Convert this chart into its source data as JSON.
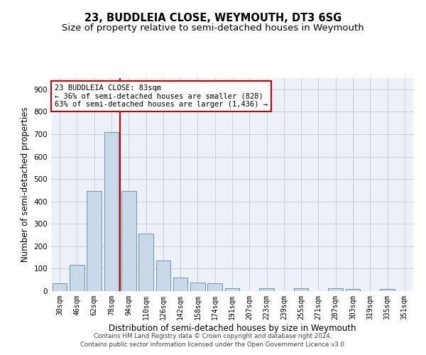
{
  "title": "23, BUDDLEIA CLOSE, WEYMOUTH, DT3 6SG",
  "subtitle": "Size of property relative to semi-detached houses in Weymouth",
  "xlabel": "Distribution of semi-detached houses by size in Weymouth",
  "ylabel": "Number of semi-detached properties",
  "bin_labels": [
    "30sqm",
    "46sqm",
    "62sqm",
    "78sqm",
    "94sqm",
    "110sqm",
    "126sqm",
    "142sqm",
    "158sqm",
    "174sqm",
    "191sqm",
    "207sqm",
    "223sqm",
    "239sqm",
    "255sqm",
    "271sqm",
    "287sqm",
    "303sqm",
    "319sqm",
    "335sqm",
    "351sqm"
  ],
  "bin_values": [
    35,
    118,
    447,
    710,
    447,
    256,
    135,
    60,
    38,
    35,
    13,
    0,
    13,
    0,
    13,
    0,
    13,
    8,
    0,
    8,
    0
  ],
  "bar_color": "#c8d8e8",
  "bar_edge_color": "#5a8ab0",
  "property_bin_index": 3,
  "red_line_color": "#cc0000",
  "annotation_line1": "23 BUDDLEIA CLOSE: 83sqm",
  "annotation_line2": "← 36% of semi-detached houses are smaller (828)",
  "annotation_line3": "63% of semi-detached houses are larger (1,436) →",
  "annotation_box_color": "#ffffff",
  "annotation_box_edge": "#cc0000",
  "footer_line1": "Contains HM Land Registry data © Crown copyright and database right 2024.",
  "footer_line2": "Contains public sector information licensed under the Open Government Licence v3.0.",
  "ylim": [
    0,
    950
  ],
  "yticks": [
    0,
    100,
    200,
    300,
    400,
    500,
    600,
    700,
    800,
    900
  ],
  "grid_color": "#c8d0dc",
  "background_color": "#eef2f8",
  "title_fontsize": 10.5,
  "subtitle_fontsize": 9.5,
  "axis_label_fontsize": 8.5,
  "tick_fontsize": 7,
  "annotation_fontsize": 7.5,
  "footer_fontsize": 6.2
}
